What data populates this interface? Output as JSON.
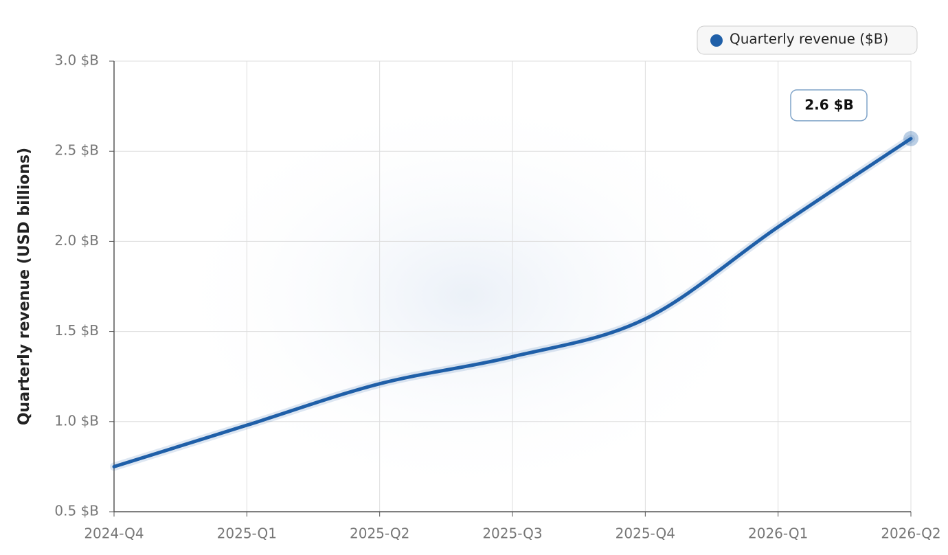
{
  "chart_data": {
    "type": "line",
    "y_label": "Quarterly revenue (USD billions)",
    "categories": [
      "2024-Q4",
      "2025-Q1",
      "2025-Q2",
      "2025-Q3",
      "2025-Q4",
      "2026-Q1",
      "2026-Q2"
    ],
    "series": [
      {
        "name": "Quarterly revenue ($B)",
        "color": "#1f5fa8",
        "values": [
          0.75,
          0.98,
          1.21,
          1.36,
          1.57,
          2.08,
          2.57
        ],
        "value_labels": [
          null,
          null,
          null,
          null,
          null,
          null,
          "2.6 $B"
        ]
      }
    ],
    "ylim": [
      0.5,
      3.0
    ],
    "yticks": [
      {
        "value": 0.5,
        "label": "0.5 $B"
      },
      {
        "value": 1.0,
        "label": "1.0 $B"
      },
      {
        "value": 1.5,
        "label": "1.5 $B"
      },
      {
        "value": 2.0,
        "label": "2.0 $B"
      },
      {
        "value": 2.5,
        "label": "2.5 $B"
      },
      {
        "value": 3.0,
        "label": "3.0 $B"
      }
    ],
    "grid": true,
    "legend": "top-right"
  }
}
